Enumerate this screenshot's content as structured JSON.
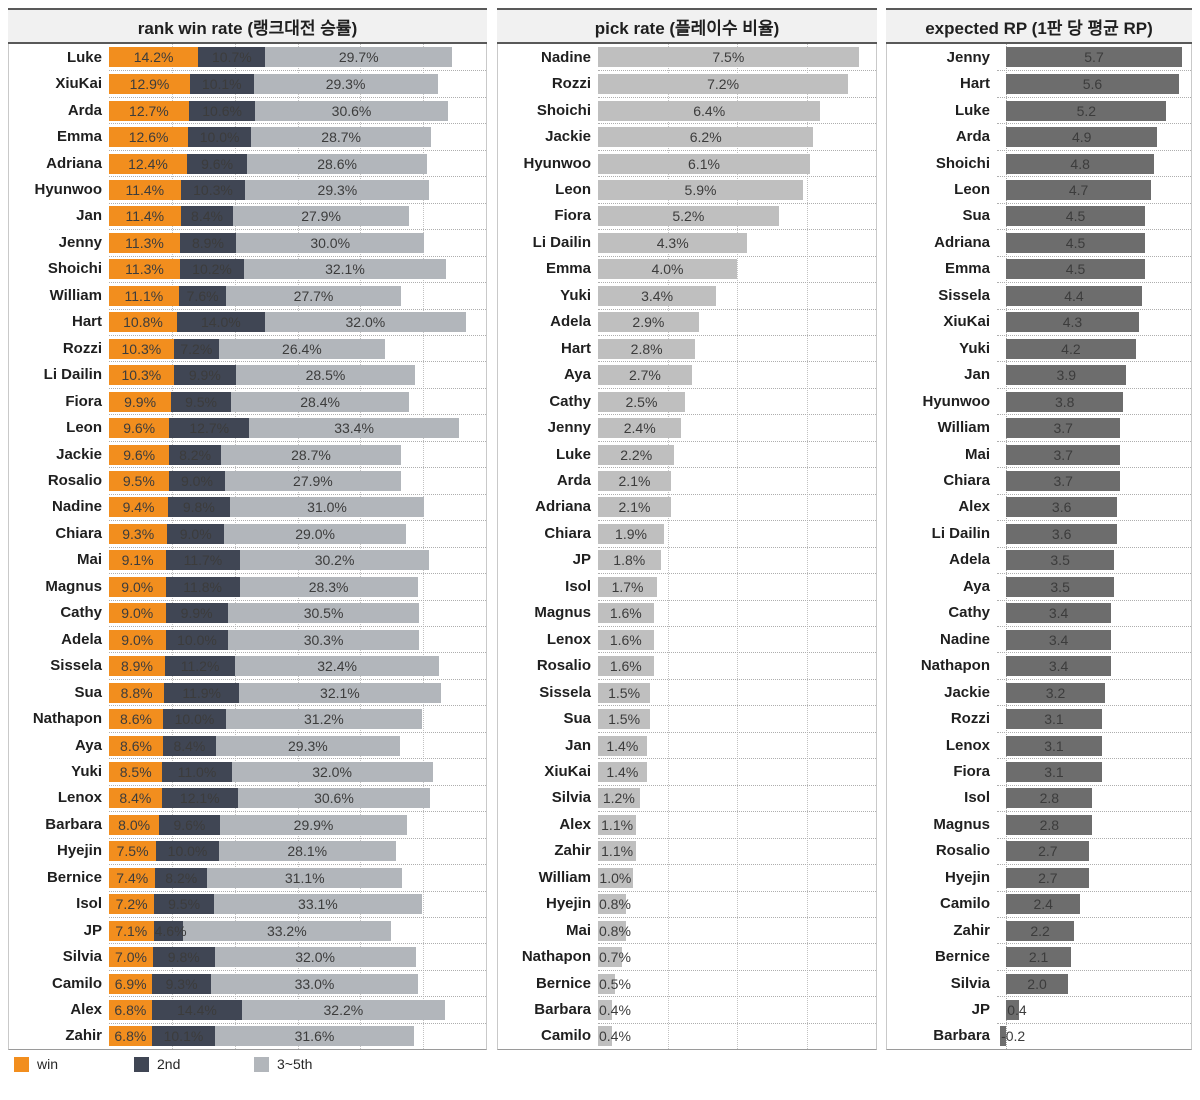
{
  "chart_data": [
    {
      "type": "bar",
      "orientation": "horizontal",
      "title": "rank win rate (랭크대전 승률)",
      "stacked": true,
      "xlim": [
        0,
        60
      ],
      "gridline_step": 10,
      "value_suffix": "%",
      "legend_position": "bottom-left",
      "categories": [
        "Luke",
        "XiuKai",
        "Arda",
        "Emma",
        "Adriana",
        "Hyunwoo",
        "Jan",
        "Jenny",
        "Shoichi",
        "William",
        "Hart",
        "Rozzi",
        "Li Dailin",
        "Fiora",
        "Leon",
        "Jackie",
        "Rosalio",
        "Nadine",
        "Chiara",
        "Mai",
        "Magnus",
        "Cathy",
        "Adela",
        "Sissela",
        "Sua",
        "Nathapon",
        "Aya",
        "Yuki",
        "Lenox",
        "Barbara",
        "Hyejin",
        "Bernice",
        "Isol",
        "JP",
        "Silvia",
        "Camilo",
        "Alex",
        "Zahir"
      ],
      "series": [
        {
          "name": "win",
          "color": "#f28e1e",
          "values": [
            14.2,
            12.9,
            12.7,
            12.6,
            12.4,
            11.4,
            11.4,
            11.3,
            11.3,
            11.1,
            10.8,
            10.3,
            10.3,
            9.9,
            9.6,
            9.6,
            9.5,
            9.4,
            9.3,
            9.1,
            9.0,
            9.0,
            9.0,
            8.9,
            8.8,
            8.6,
            8.6,
            8.5,
            8.4,
            8.0,
            7.5,
            7.4,
            7.2,
            7.1,
            7.0,
            6.9,
            6.8,
            6.8
          ]
        },
        {
          "name": "2nd",
          "color": "#404654",
          "values": [
            10.7,
            10.1,
            10.6,
            10.0,
            9.6,
            10.3,
            8.4,
            8.9,
            10.2,
            7.6,
            14.0,
            7.2,
            9.9,
            9.5,
            12.7,
            8.2,
            9.0,
            9.8,
            9.0,
            11.7,
            11.8,
            9.9,
            10.0,
            11.2,
            11.9,
            10.0,
            8.4,
            11.0,
            12.1,
            9.6,
            10.0,
            8.2,
            9.5,
            4.6,
            9.8,
            9.3,
            14.4,
            10.1
          ]
        },
        {
          "name": "3~5th",
          "color": "#b2b6bb",
          "values": [
            29.7,
            29.3,
            30.6,
            28.7,
            28.6,
            29.3,
            27.9,
            30.0,
            32.1,
            27.7,
            32.0,
            26.4,
            28.5,
            28.4,
            33.4,
            28.7,
            27.9,
            31.0,
            29.0,
            30.2,
            28.3,
            30.5,
            30.3,
            32.4,
            32.1,
            31.2,
            29.3,
            32.0,
            30.6,
            29.9,
            28.1,
            31.1,
            33.1,
            33.2,
            32.0,
            33.0,
            32.2,
            31.6
          ]
        }
      ]
    },
    {
      "type": "bar",
      "orientation": "horizontal",
      "title": "pick rate (플레이수 비율)",
      "stacked": false,
      "xlim": [
        0,
        8
      ],
      "gridline_step": 2,
      "value_suffix": "%",
      "bar_color": "#bfbfbf",
      "categories": [
        "Nadine",
        "Rozzi",
        "Shoichi",
        "Jackie",
        "Hyunwoo",
        "Leon",
        "Fiora",
        "Li Dailin",
        "Emma",
        "Yuki",
        "Adela",
        "Hart",
        "Aya",
        "Cathy",
        "Jenny",
        "Luke",
        "Arda",
        "Adriana",
        "Chiara",
        "JP",
        "Isol",
        "Magnus",
        "Lenox",
        "Rosalio",
        "Sissela",
        "Sua",
        "Jan",
        "XiuKai",
        "Silvia",
        "Alex",
        "Zahir",
        "William",
        "Hyejin",
        "Mai",
        "Nathapon",
        "Bernice",
        "Barbara",
        "Camilo"
      ],
      "values": [
        7.5,
        7.2,
        6.4,
        6.2,
        6.1,
        5.9,
        5.2,
        4.3,
        4.0,
        3.4,
        2.9,
        2.8,
        2.7,
        2.5,
        2.4,
        2.2,
        2.1,
        2.1,
        1.9,
        1.8,
        1.7,
        1.6,
        1.6,
        1.6,
        1.5,
        1.5,
        1.4,
        1.4,
        1.2,
        1.1,
        1.1,
        1.0,
        0.8,
        0.8,
        0.7,
        0.5,
        0.4,
        0.4
      ]
    },
    {
      "type": "bar",
      "orientation": "horizontal",
      "title": "expected RP (1판 당 평균 RP)",
      "stacked": false,
      "xlim": [
        -0.3,
        6.0
      ],
      "gridline_step": 0,
      "value_suffix": "",
      "bar_color": "#6d6d6d",
      "categories": [
        "Jenny",
        "Hart",
        "Luke",
        "Arda",
        "Shoichi",
        "Leon",
        "Sua",
        "Adriana",
        "Emma",
        "Sissela",
        "XiuKai",
        "Yuki",
        "Jan",
        "Hyunwoo",
        "William",
        "Mai",
        "Chiara",
        "Alex",
        "Li Dailin",
        "Adela",
        "Aya",
        "Cathy",
        "Nadine",
        "Nathapon",
        "Jackie",
        "Rozzi",
        "Lenox",
        "Fiora",
        "Isol",
        "Magnus",
        "Rosalio",
        "Hyejin",
        "Camilo",
        "Zahir",
        "Bernice",
        "Silvia",
        "JP",
        "Barbara"
      ],
      "values": [
        5.7,
        5.6,
        5.2,
        4.9,
        4.8,
        4.7,
        4.5,
        4.5,
        4.5,
        4.4,
        4.3,
        4.2,
        3.9,
        3.8,
        3.7,
        3.7,
        3.7,
        3.6,
        3.6,
        3.5,
        3.5,
        3.4,
        3.4,
        3.4,
        3.2,
        3.1,
        3.1,
        3.1,
        2.8,
        2.8,
        2.7,
        2.7,
        2.4,
        2.2,
        2.1,
        2.0,
        0.4,
        -0.2
      ]
    }
  ],
  "legend": [
    {
      "label": "win",
      "color": "#f28e1e"
    },
    {
      "label": "2nd",
      "color": "#404654"
    },
    {
      "label": "3~5th",
      "color": "#b2b6bb"
    }
  ],
  "colors": {
    "header_bg": "#f1f1f1",
    "header_border": "#595959",
    "gridline": "#c2c2c2",
    "value_text": "#3c3c3c",
    "category_text": "#1f1f1f"
  }
}
